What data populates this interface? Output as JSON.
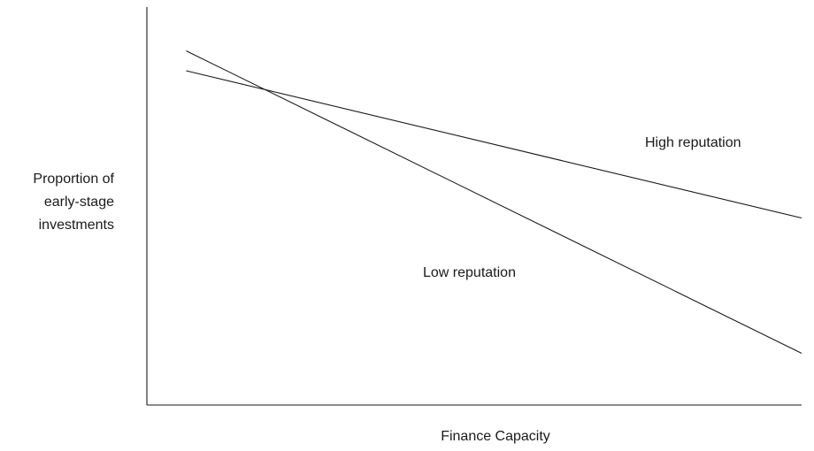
{
  "chart_data": {
    "type": "line",
    "xlabel": "Finance Capacity",
    "ylabel_lines": [
      "Proportion of",
      "early-stage",
      "investments"
    ],
    "xlim": [
      0,
      100
    ],
    "ylim": [
      0,
      100
    ],
    "grid": false,
    "legend": "none",
    "series": [
      {
        "name": "High reputation",
        "x": [
          6,
          100
        ],
        "y": [
          84,
          47
        ]
      },
      {
        "name": "Low reputation",
        "x": [
          6,
          100
        ],
        "y": [
          89,
          13
        ]
      }
    ]
  }
}
